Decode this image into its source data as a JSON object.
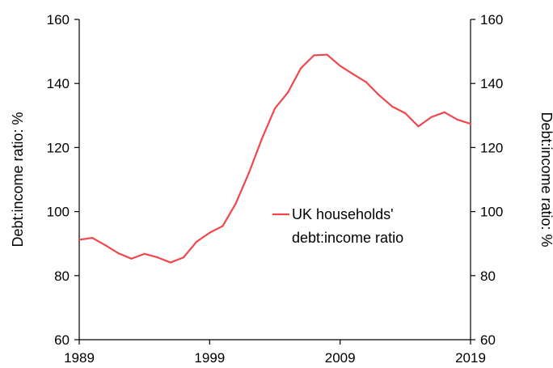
{
  "chart_data": {
    "type": "line",
    "title": "",
    "xlabel": "",
    "ylabel": "Debt:income ratio:  %",
    "ylabel_right": "Debt:income ratio:  %",
    "xlim": [
      1989,
      2019
    ],
    "ylim": [
      60,
      160
    ],
    "x_ticks": [
      1989,
      1999,
      2009,
      2019
    ],
    "y_ticks": [
      60,
      80,
      100,
      120,
      140,
      160
    ],
    "grid": false,
    "legend_position": "center-right",
    "legend": {
      "line1": "UK households'",
      "line2": "debt:income ratio"
    },
    "series": [
      {
        "name": "UK households' debt:income ratio",
        "color": "#f0474c",
        "x": [
          1989,
          1990,
          1991,
          1992,
          1993,
          1994,
          1995,
          1996,
          1997,
          1998,
          1999,
          2000,
          2001,
          2002,
          2003,
          2004,
          2005,
          2006,
          2007,
          2008,
          2009,
          2010,
          2011,
          2012,
          2013,
          2014,
          2015,
          2016,
          2017,
          2018,
          2019
        ],
        "y": [
          91.2,
          91.8,
          89.5,
          87.0,
          85.3,
          86.8,
          85.7,
          84.1,
          85.7,
          90.6,
          93.4,
          95.5,
          102.5,
          112.0,
          122.7,
          132.2,
          137.2,
          144.8,
          148.8,
          149.0,
          145.5,
          142.9,
          140.4,
          136.3,
          132.8,
          130.7,
          126.6,
          129.5,
          131.0,
          128.7,
          127.4
        ]
      }
    ]
  }
}
